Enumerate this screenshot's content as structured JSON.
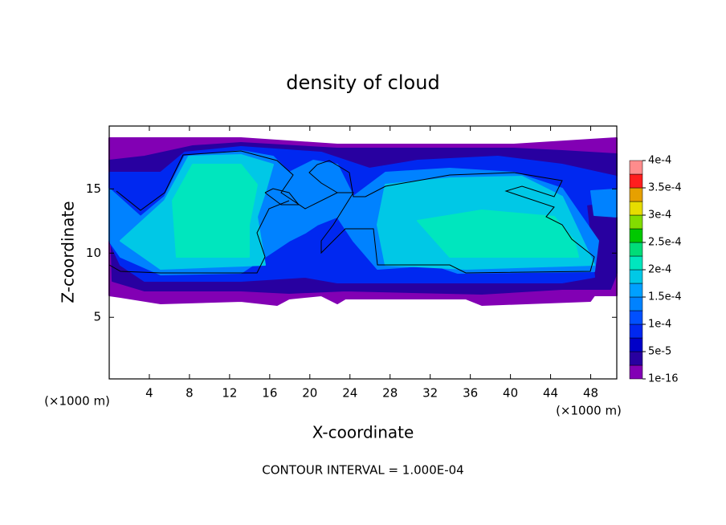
{
  "chart_data": {
    "type": "contour",
    "title": "density of cloud",
    "x_label": "X-coordinate",
    "y_label": "Z-coordinate",
    "x_unit": "(×1000 m)",
    "y_unit": "(×1000 m)",
    "footnote": "CONTOUR INTERVAL = 1.000E-04",
    "xlim": [
      0,
      50.6
    ],
    "xticks": [
      4,
      8,
      12,
      16,
      20,
      24,
      28,
      32,
      36,
      40,
      44,
      48
    ],
    "ylim": [
      0.2,
      19.9
    ],
    "yticks": [
      5,
      10,
      15
    ],
    "colorbar": {
      "levels": [
        {
          "value": 1e-16,
          "label": "1e-16"
        },
        {
          "value": 5e-05,
          "label": "5e-5"
        },
        {
          "value": 0.0001,
          "label": "1e-4"
        },
        {
          "value": 0.00015,
          "label": "1.5e-4"
        },
        {
          "value": 0.0002,
          "label": "2e-4"
        },
        {
          "value": 0.00025,
          "label": "2.5e-4"
        },
        {
          "value": 0.0003,
          "label": "3e-4"
        },
        {
          "value": 0.00035,
          "label": "3.5e-4"
        },
        {
          "value": 0.0004,
          "label": "4e-4"
        }
      ],
      "colors": [
        "#8200b4",
        "#2800a0",
        "#0000c8",
        "#0028f0",
        "#0050ff",
        "#0082ff",
        "#00a0ff",
        "#00c8e6",
        "#00e6be",
        "#00dc78",
        "#00c800",
        "#82dc00",
        "#e6dc00",
        "#e6a000",
        "#ff1e1e",
        "#ff8c8c"
      ]
    }
  }
}
